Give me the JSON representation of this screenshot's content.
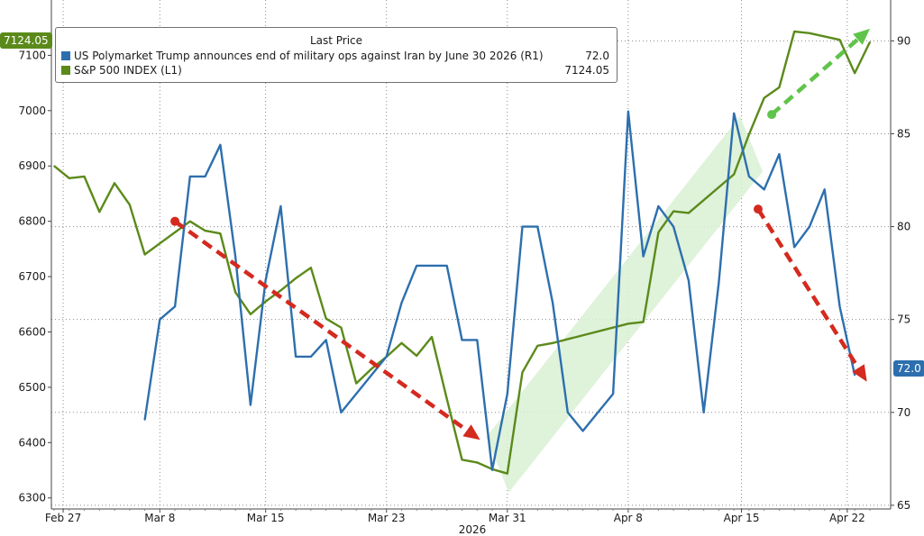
{
  "chart_data": {
    "type": "line",
    "title": "",
    "xlabel": "",
    "x_ticks": [
      "Feb 27",
      "Mar 8",
      "Mar 15",
      "Mar 23",
      "Mar 31",
      "Apr 8",
      "Apr 15",
      "Apr 22"
    ],
    "x_year_label": "2026",
    "legend": {
      "title": "Last Price",
      "entries": [
        {
          "name": "US Polymarket Trump announces end of military ops against Iran by June 30 2026  (R1)",
          "value": "72.0",
          "color": "#2d6fae"
        },
        {
          "name": "S&P 500 INDEX  (L1)",
          "value": "7124.05",
          "color": "#5b8a1a"
        }
      ]
    },
    "axes": {
      "left": {
        "ticks": [
          6300,
          6400,
          6500,
          6600,
          6700,
          6800,
          6900,
          7000,
          7100
        ],
        "range": [
          6280,
          7200
        ]
      },
      "right": {
        "ticks": [
          65,
          70,
          75,
          80,
          85,
          90
        ],
        "range": [
          64.8,
          92.2
        ]
      }
    },
    "last_value_tags": {
      "left": "7124.05",
      "right": "72.0"
    },
    "grid": true,
    "series": [
      {
        "name": "S&P 500 INDEX  (L1)",
        "axis": "left",
        "color": "#5b8a1a",
        "points": [
          [
            0,
            6900
          ],
          [
            1,
            6878
          ],
          [
            2,
            6881
          ],
          [
            3,
            6817
          ],
          [
            4,
            6869
          ],
          [
            5,
            6830
          ],
          [
            6,
            6740
          ],
          [
            7,
            6760
          ],
          [
            8,
            6780
          ],
          [
            9,
            6800
          ],
          [
            10,
            6783
          ],
          [
            11,
            6778
          ],
          [
            12,
            6672
          ],
          [
            13,
            6632
          ],
          [
            14,
            6655
          ],
          [
            15,
            6675
          ],
          [
            16,
            6697
          ],
          [
            17,
            6716
          ],
          [
            18,
            6624
          ],
          [
            19,
            6608
          ],
          [
            20,
            6507
          ],
          [
            21,
            6533
          ],
          [
            22,
            6555
          ],
          [
            23,
            6580
          ],
          [
            24,
            6557
          ],
          [
            25,
            6591
          ],
          [
            26,
            6479
          ],
          [
            27,
            6369
          ],
          [
            28,
            6364
          ],
          [
            29,
            6352
          ],
          [
            30,
            6344
          ],
          [
            31,
            6527
          ],
          [
            32,
            6575
          ],
          [
            33,
            6580
          ],
          [
            38,
            6615
          ],
          [
            39,
            6618
          ],
          [
            40,
            6780
          ],
          [
            41,
            6818
          ],
          [
            42,
            6815
          ],
          [
            45,
            6885
          ],
          [
            46,
            6957
          ],
          [
            47,
            7023
          ],
          [
            48,
            7042
          ],
          [
            49,
            7143
          ],
          [
            50,
            7140
          ],
          [
            52,
            7128
          ],
          [
            53,
            7068
          ],
          [
            54,
            7124.05
          ]
        ]
      },
      {
        "name": "US Polymarket Trump announces end of military ops against Iran by June 30 2026  (R1)",
        "axis": "right",
        "color": "#2d6fae",
        "points": [
          [
            6,
            69.6
          ],
          [
            7,
            75.0
          ],
          [
            8,
            75.7
          ],
          [
            9,
            82.7
          ],
          [
            10,
            82.7
          ],
          [
            11,
            84.4
          ],
          [
            12,
            78.4
          ],
          [
            13,
            70.4
          ],
          [
            14,
            77.1
          ],
          [
            15,
            81.1
          ],
          [
            16,
            73.0
          ],
          [
            17,
            73.0
          ],
          [
            18,
            73.9
          ],
          [
            19,
            70.0
          ],
          [
            22,
            73.0
          ],
          [
            23,
            75.9
          ],
          [
            24,
            77.9
          ],
          [
            25,
            77.9
          ],
          [
            26,
            77.9
          ],
          [
            27,
            73.9
          ],
          [
            28,
            73.9
          ],
          [
            29,
            66.9
          ],
          [
            30,
            71.0
          ],
          [
            31,
            80.0
          ],
          [
            32,
            80.0
          ],
          [
            33,
            75.9
          ],
          [
            34,
            70.0
          ],
          [
            35,
            69.0
          ],
          [
            36,
            70.0
          ],
          [
            37,
            71.0
          ],
          [
            38,
            86.2
          ],
          [
            39,
            78.4
          ],
          [
            40,
            81.1
          ],
          [
            41,
            80.0
          ],
          [
            42,
            77.1
          ],
          [
            43,
            70.0
          ],
          [
            44,
            77.0
          ],
          [
            45,
            86.1
          ],
          [
            46,
            82.7
          ],
          [
            47,
            82.0
          ],
          [
            48,
            83.9
          ],
          [
            49,
            78.9
          ],
          [
            50,
            80.0
          ],
          [
            51,
            82.0
          ],
          [
            52,
            75.7
          ],
          [
            53,
            72.0
          ]
        ]
      }
    ],
    "annotations": {
      "trend_band": {
        "color": "#d9f0d3",
        "points": [
          [
            28.6,
            6410
          ],
          [
            45.4,
            6990
          ],
          [
            46.9,
            6890
          ],
          [
            30.1,
            6310
          ]
        ]
      },
      "arrows": [
        {
          "color": "#d42a1f",
          "from": [
            8,
            6800
          ],
          "to": [
            28.2,
            6405
          ]
        },
        {
          "color": "#d42a1f",
          "from": [
            46.6,
            6822
          ],
          "to": [
            53.8,
            6510
          ]
        },
        {
          "color": "#5fc44a",
          "from": [
            47.5,
            6993
          ],
          "to": [
            54.0,
            7148
          ]
        }
      ]
    }
  }
}
